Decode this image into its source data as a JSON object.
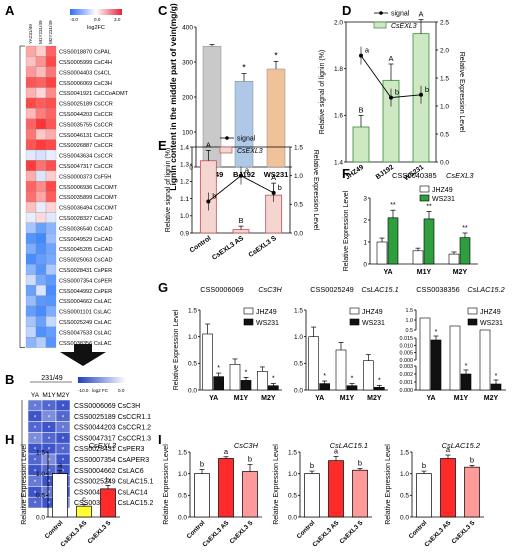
{
  "panels": {
    "A": {
      "letter": "A",
      "columns": [
        "YA231/49",
        "M1Y231/49",
        "M2Y231/49"
      ],
      "legend": {
        "label": "log2FC",
        "min": "-3.0",
        "mid": "0.0",
        "max": "3.0"
      },
      "genes": [
        "CSS0018870",
        "CSS0005999",
        "CSS0004403",
        "CSS0006069",
        "CSS0041921",
        "CSS0025189",
        "CSS0044203",
        "CSS0035755",
        "CSS0046131",
        "CSS0026887",
        "CSS0043634",
        "CSS0047317",
        "CSS0000373",
        "CSS0006936",
        "CSS0035899",
        "CSS0036494",
        "CSS0028327",
        "CSS0036540",
        "CSS0049529",
        "CSS0045205",
        "CSS0025063",
        "CSS0028431",
        "CSS0007354",
        "CSS0044992",
        "CSS0004662",
        "CSS0001101",
        "CSS0025249",
        "CSS0047533",
        "CSS0038356"
      ],
      "names": [
        "CsPAL",
        "CsC4H",
        "Cs4CL",
        "CsC3H",
        "CsCCoAOMT",
        "CsCCR",
        "CsCCR",
        "CsCCR",
        "CsCCR",
        "CsCCR",
        "CsCCR",
        "CsCCR",
        "CsF5H",
        "CsCOMT",
        "CsCOMT",
        "CsCOMT",
        "CsCAD",
        "CsCAD",
        "CsCAD",
        "CsCAD",
        "CsCAD",
        "CsPER",
        "CsPER",
        "CsPER",
        "CsLAC",
        "CsLAC",
        "CsLAC",
        "CsLAC",
        "CsLAC"
      ],
      "cells": [
        [
          1.2,
          0.6,
          2.2
        ],
        [
          0.8,
          1.5,
          2.6
        ],
        [
          1.4,
          0.9,
          1.9
        ],
        [
          2.4,
          2.2,
          2.7
        ],
        [
          1.0,
          0.5,
          1.6
        ],
        [
          2.6,
          2.3,
          2.5
        ],
        [
          0.9,
          1.8,
          2.2
        ],
        [
          2.2,
          2.9,
          2.4
        ],
        [
          1.9,
          0.7,
          1.1
        ],
        [
          2.4,
          2.8,
          2.6
        ],
        [
          -0.3,
          -0.5,
          -0.2
        ],
        [
          2.8,
          2.0,
          2.5
        ],
        [
          1.1,
          -0.4,
          0.6
        ],
        [
          2.2,
          1.6,
          2.6
        ],
        [
          2.0,
          1.2,
          2.3
        ],
        [
          0.8,
          -0.2,
          0.5
        ],
        [
          -0.2,
          0.4,
          -0.3
        ],
        [
          -1.2,
          -2.1,
          -1.6
        ],
        [
          -2.4,
          -2.7,
          -1.4
        ],
        [
          -1.8,
          -2.5,
          -2.0
        ],
        [
          -2.6,
          -2.2,
          -1.9
        ],
        [
          -1.6,
          -2.4,
          -1.1
        ],
        [
          -0.6,
          -1.9,
          -2.3
        ],
        [
          -2.1,
          -0.4,
          -2.6
        ],
        [
          -1.4,
          -2.3,
          -2.4
        ],
        [
          -2.2,
          -2.6,
          -1.8
        ],
        [
          -1.2,
          -2.1,
          -0.7
        ],
        [
          -0.8,
          -2.5,
          -2.2
        ],
        [
          -1.6,
          -1.0,
          -2.4
        ]
      ]
    },
    "B": {
      "letter": "B",
      "header": "231/49",
      "columns": [
        "YA",
        "M1Y",
        "M2Y"
      ],
      "legend": {
        "min": "-10.0",
        "label": "log2 FC",
        "max": "0.0"
      },
      "rows": [
        {
          "id": "CSS0006069",
          "name": "CsC3H",
          "v": [
            -7,
            -8,
            -9
          ]
        },
        {
          "id": "CSS0025189",
          "name": "CsCCR1.1",
          "v": [
            -9,
            -6,
            -8
          ]
        },
        {
          "id": "CSS0044203",
          "name": "CsCCR1.2",
          "v": [
            -8,
            -9,
            -7
          ]
        },
        {
          "id": "CSS0047317",
          "name": "CsCCR1.3",
          "v": [
            -6,
            -8,
            -9
          ]
        },
        {
          "id": "CSS0028431",
          "name": "CsPER3",
          "v": [
            -9,
            -9,
            -8
          ]
        },
        {
          "id": "CSS0007354",
          "name": "CsAPER3",
          "v": [
            -8,
            -6,
            -9
          ]
        },
        {
          "id": "CSS0004662",
          "name": "CsLAC6",
          "v": [
            -9,
            -8,
            -9
          ]
        },
        {
          "id": "CSS0025249",
          "name": "CsLAC15.1",
          "v": [
            -7,
            -9,
            -8
          ]
        },
        {
          "id": "CSS0047533",
          "name": "CsLAC14",
          "v": [
            -9,
            -7,
            -9
          ]
        },
        {
          "id": "CSS0038356",
          "name": "CsLAC15.2",
          "v": [
            -8,
            -9,
            -6
          ]
        }
      ],
      "star": "*"
    },
    "C": {
      "letter": "C"
    },
    "D": {
      "letter": "D",
      "legend": [
        "signal",
        "CsEXL3"
      ]
    },
    "E": {
      "letter": "E",
      "legend": [
        "signal",
        "CsEXL3"
      ]
    },
    "F": {
      "letter": "F",
      "title_id": "CSS0040385",
      "title_gene": "CsEXL3",
      "legend": [
        "JHZ49",
        "WS231"
      ]
    },
    "G": {
      "letter": "G",
      "legend": [
        "JHZ49",
        "WS231"
      ]
    },
    "H": {
      "letter": "H"
    },
    "I": {
      "letter": "I"
    }
  },
  "chart_data": [
    {
      "panel": "C",
      "type": "bar",
      "categories": [
        "JHZ49",
        "BJ192",
        "WS231"
      ],
      "values": [
        345,
        245,
        280
      ],
      "errors": [
        5,
        22,
        22
      ],
      "sig": [
        "",
        "*",
        "*"
      ],
      "ylabel": "Lignin content in the middle part of vein(mg/g)",
      "ylim": [
        0,
        400
      ],
      "yticks": [
        "0",
        "100",
        "200",
        "300",
        "400"
      ],
      "colors": [
        "#c9c9c9",
        "#aec8e8",
        "#f0c299"
      ]
    },
    {
      "panel": "D",
      "type": "bar+line",
      "categories": [
        "JHZ49",
        "BJ192",
        "WS231"
      ],
      "bars": [
        1.55,
        1.75,
        1.95
      ],
      "bar_errors": [
        0.05,
        0.07,
        0.06
      ],
      "bar_letters": [
        "B",
        "A",
        "A"
      ],
      "signal": [
        1.9,
        1.15,
        1.2
      ],
      "signal_letters": [
        "a",
        "b",
        "b"
      ],
      "ylabel": "Relative signal of lignin (%)",
      "ylim": [
        1.4,
        2.0
      ],
      "yticks": [
        "1.4",
        "1.6",
        "1.8",
        "2.0"
      ],
      "y2label": "Relative Expression Level",
      "y2ticks": [
        "0.0",
        "0.5",
        "1.0",
        "1.5",
        "2.0",
        "2.5"
      ],
      "bar_color": "#cde8c3",
      "bar_stroke": "#3a8a3a"
    },
    {
      "panel": "E",
      "type": "bar+line",
      "categories": [
        "Control",
        "CsEXL3 AS",
        "CsEXL3 S"
      ],
      "bars": [
        1.32,
        0.92,
        1.12
      ],
      "bar_errors": [
        0.06,
        0.02,
        0.07
      ],
      "bar_letters": [
        "A",
        "B",
        "A"
      ],
      "signal": [
        0.55,
        1.0,
        0.7
      ],
      "signal_letters": [
        "b",
        "a",
        "b"
      ],
      "ylabel": "Relative signal of lignin (%)",
      "ylim": [
        0.9,
        1.4
      ],
      "yticks": [
        "0.9",
        "1.0",
        "1.1",
        "1.2",
        "1.3",
        "1.4"
      ],
      "y2label": "Relative Expression Level",
      "y2ticks": [
        "0.0",
        "0.5",
        "1.0",
        "1.5"
      ],
      "bar_color": "#f5d5d0",
      "bar_stroke": "#c05050"
    },
    {
      "panel": "F",
      "type": "bar",
      "categories": [
        "YA",
        "M1Y",
        "M2Y"
      ],
      "series": [
        {
          "name": "JHZ49",
          "values": [
            1.0,
            0.6,
            0.45
          ]
        },
        {
          "name": "WS231",
          "values": [
            2.1,
            2.05,
            1.2
          ]
        }
      ],
      "sig": [
        "**",
        "**",
        "**"
      ],
      "ylabel": "Relative Expression Level",
      "ylim": [
        0,
        3
      ],
      "yticks": [
        "0",
        "1",
        "2",
        "3"
      ]
    },
    {
      "panel": "G1",
      "type": "bar",
      "title_id": "CSS0006069",
      "title_gene": "CsC3H",
      "categories": [
        "YA",
        "M1Y",
        "M2Y"
      ],
      "series": [
        {
          "name": "JHZ49",
          "values": [
            1.05,
            0.48,
            0.35
          ]
        },
        {
          "name": "WS231",
          "values": [
            0.25,
            0.18,
            0.08
          ]
        }
      ],
      "sig": [
        "*",
        "*",
        "*"
      ],
      "ylabel": "Relative Expression Level",
      "ylim": [
        0,
        1.5
      ],
      "yticks": [
        "0.0",
        "0.5",
        "1.0",
        "1.5"
      ]
    },
    {
      "panel": "G2",
      "type": "bar",
      "title_id": "CSS0025249",
      "title_gene": "CsLAC15.1",
      "categories": [
        "YA",
        "M1Y",
        "M2Y"
      ],
      "series": [
        {
          "name": "JHZ49",
          "values": [
            1.0,
            0.75,
            0.55
          ]
        },
        {
          "name": "WS231",
          "values": [
            0.12,
            0.08,
            0.05
          ]
        }
      ],
      "sig": [
        "*",
        "*",
        "*"
      ],
      "ylabel": "Relative Expression Level",
      "ylim": [
        0,
        1.5
      ],
      "yticks": [
        "0.0",
        "0.5",
        "1.0",
        "1.5"
      ]
    },
    {
      "panel": "G3",
      "type": "bar",
      "title_id": "CSS0038356",
      "title_gene": "CsLAC15.2",
      "categories": [
        "YA",
        "M1Y",
        "M2Y"
      ],
      "series": [
        {
          "name": "JHZ49",
          "values": [
            1.0,
            0.65,
            0.55
          ]
        },
        {
          "name": "WS231",
          "values": [
            0.28,
            0.08,
            0.02
          ]
        }
      ],
      "sig": [
        "*",
        "*",
        "*"
      ],
      "ylabel": "Relative Expression Level",
      "yticks_top": [
        "0.5",
        "1.0",
        "1.5"
      ],
      "yticks_mid": [
        "0.000",
        "0.005",
        "0.010",
        "0.015"
      ],
      "yticks_bottom": [
        "0.000",
        "0.001",
        "0.002",
        "0.003"
      ]
    },
    {
      "panel": "H",
      "type": "bar",
      "title": "CsEXL3",
      "categories": [
        "Control",
        "CsEXL3 AS",
        "CsEXL3 S"
      ],
      "values": [
        1.0,
        0.25,
        0.65
      ],
      "errors": [
        0.07,
        0.04,
        0.08
      ],
      "letters": [
        "a",
        "c",
        "b"
      ],
      "ylabel": "Relative Expression Level",
      "ylim": [
        0,
        1.5
      ],
      "yticks": [
        "0.0",
        "0.5",
        "1.0",
        "1.5"
      ],
      "colors": [
        "#ffffff",
        "#ffff33",
        "#ff2b2b"
      ]
    },
    {
      "panel": "I1",
      "type": "bar",
      "title": "CsC3H",
      "categories": [
        "Control",
        "CsEXL3 AS",
        "CsEXL3 S"
      ],
      "values": [
        1.0,
        1.35,
        1.05
      ],
      "errors": [
        0.1,
        0.04,
        0.16
      ],
      "letters": [
        "b",
        "a",
        "b"
      ],
      "ylabel": "Relative Expression Level",
      "ylim": [
        0,
        1.5
      ],
      "yticks": [
        "0.0",
        "0.5",
        "1.0",
        "1.5"
      ],
      "colors": [
        "#ffffff",
        "#ff2b2b",
        "#ff9a9a"
      ]
    },
    {
      "panel": "I2",
      "type": "bar",
      "title": "CsLAC15.1",
      "categories": [
        "Control",
        "CsEXL3 AS",
        "CsEXL3 S"
      ],
      "values": [
        1.0,
        1.3,
        1.08
      ],
      "errors": [
        0.06,
        0.1,
        0.04
      ],
      "letters": [
        "b",
        "a",
        "b"
      ],
      "ylabel": "Relative Expression Level",
      "ylim": [
        0,
        1.5
      ],
      "yticks": [
        "0.0",
        "0.5",
        "1.0",
        "1.5"
      ],
      "colors": [
        "#ffffff",
        "#ff2b2b",
        "#ff9a9a"
      ]
    },
    {
      "panel": "I3",
      "type": "bar",
      "title": "CsLAC15.2",
      "categories": [
        "Control",
        "CsEXL3 AS",
        "CsEXL3 S"
      ],
      "values": [
        1.0,
        1.35,
        1.15
      ],
      "errors": [
        0.06,
        0.08,
        0.04
      ],
      "letters": [
        "b",
        "a",
        "b"
      ],
      "ylabel": "Relative Expression Level",
      "ylim": [
        0,
        1.5
      ],
      "yticks": [
        "0.0",
        "0.5",
        "1.0",
        "1.5"
      ],
      "colors": [
        "#ffffff",
        "#ff2b2b",
        "#ff9a9a"
      ]
    }
  ]
}
